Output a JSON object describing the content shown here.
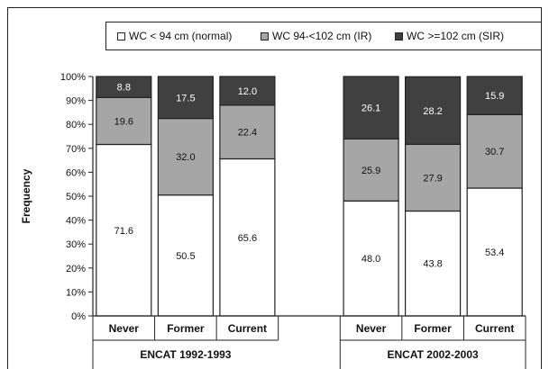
{
  "chart_data": {
    "type": "bar",
    "stacked": true,
    "normalized_percent": true,
    "ylabel": "Frequency",
    "ylim": [
      0,
      100
    ],
    "yticks": [
      "0%",
      "10%",
      "20%",
      "30%",
      "40%",
      "50%",
      "60%",
      "70%",
      "80%",
      "90%",
      "100%"
    ],
    "groups": [
      {
        "label": "ENCAT 1992-1993",
        "categories": [
          "Never",
          "Former",
          "Current"
        ]
      },
      {
        "label": "ENCAT 2002-2003",
        "categories": [
          "Never",
          "Former",
          "Current"
        ]
      }
    ],
    "series": [
      {
        "name": "WC < 94 cm (normal)",
        "color": "#ffffff",
        "label_color": "#111111",
        "values": [
          71.6,
          50.5,
          65.6,
          48.0,
          43.8,
          53.4
        ],
        "labels": [
          "71.6",
          "50.5",
          "65.6",
          "48.0",
          "43.8",
          "53.4"
        ]
      },
      {
        "name": "WC 94-<102 cm (IR)",
        "color": "#a6a6a6",
        "label_color": "#111111",
        "values": [
          19.6,
          32.0,
          22.4,
          25.9,
          27.9,
          30.7
        ],
        "labels": [
          "19.6",
          "32.0",
          "22.4",
          "25.9",
          "27.9",
          "30.7"
        ]
      },
      {
        "name": "WC >=102 cm (SIR)",
        "color": "#404040",
        "label_color": "#ffffff",
        "values": [
          8.8,
          17.5,
          12.0,
          26.1,
          28.2,
          15.9
        ],
        "labels": [
          "8.8",
          "17.5",
          "12.0",
          "26.1",
          "28.2",
          "15.9"
        ]
      }
    ],
    "legend": "top",
    "grid": false
  }
}
